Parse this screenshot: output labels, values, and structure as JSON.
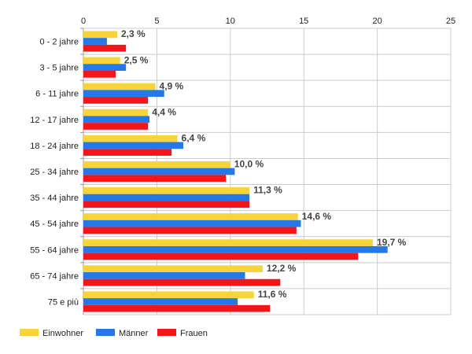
{
  "chart_data": {
    "type": "bar",
    "orientation": "horizontal",
    "categories": [
      "0 - 2 jahre",
      "3 - 5 jahre",
      "6 - 11 jahre",
      "12 - 17 jahre",
      "18 - 24 jahre",
      "25 - 34 jahre",
      "35 - 44 jahre",
      "45 - 54 jahre",
      "55 - 64 jahre",
      "65 - 74 jahre",
      "75 e più"
    ],
    "series": [
      {
        "name": "Einwohner",
        "color": "#f7d43a",
        "values": [
          2.3,
          2.5,
          4.9,
          4.4,
          6.4,
          10.0,
          11.3,
          14.6,
          19.7,
          12.2,
          11.6
        ]
      },
      {
        "name": "Männer",
        "color": "#2478e8",
        "values": [
          1.6,
          2.9,
          5.5,
          4.5,
          6.8,
          10.3,
          11.3,
          14.8,
          20.7,
          11.0,
          10.5
        ]
      },
      {
        "name": "Frauen",
        "color": "#f2161a",
        "values": [
          2.9,
          2.2,
          4.4,
          4.4,
          6.0,
          9.7,
          11.3,
          14.5,
          18.7,
          13.4,
          12.7
        ]
      }
    ],
    "data_labels": [
      "2,3 %",
      "2,5 %",
      "4,9 %",
      "4,4 %",
      "6,4 %",
      "10,0 %",
      "11,3 %",
      "14,6 %",
      "19,7 %",
      "12,2 %",
      "11,6 %"
    ],
    "xlim": [
      0,
      25
    ],
    "x_ticks": [
      "0",
      "5",
      "10",
      "15",
      "20",
      "25"
    ],
    "x_tick_values": [
      0,
      5,
      10,
      15,
      20,
      25
    ],
    "grid": true,
    "legend_position": "bottom-left",
    "title": "",
    "xlabel": "",
    "ylabel": ""
  }
}
